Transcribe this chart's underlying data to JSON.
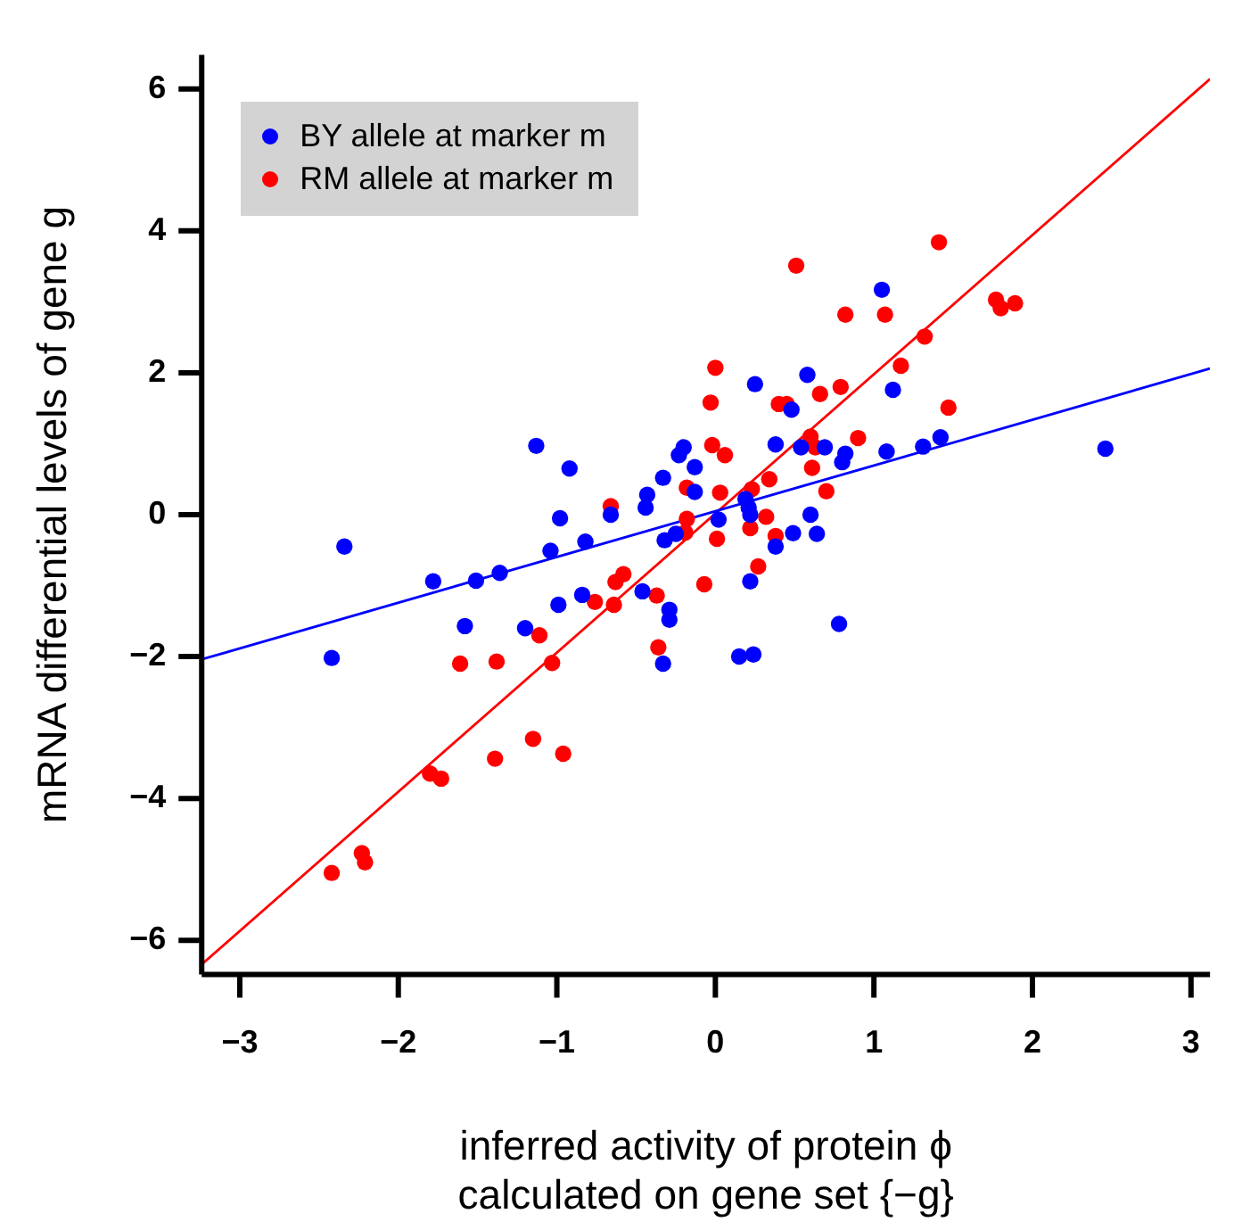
{
  "chart_data": {
    "type": "scatter",
    "xlabel": "inferred activity of protein ϕ\ncalculated on gene set {−g}",
    "ylabel": "mRNA differential levels of gene g",
    "xlim": [
      -3.24,
      3.12
    ],
    "ylim": [
      -6.48,
      6.48
    ],
    "xticks": [
      -3,
      -2,
      -1,
      0,
      1,
      2,
      3
    ],
    "yticks": [
      -6,
      -4,
      -2,
      0,
      2,
      4,
      6
    ],
    "grid": false,
    "legend": "top left",
    "marker": "circle",
    "series": [
      {
        "name": "BY allele at marker m",
        "color": "#0000ff",
        "x": [
          -2.34,
          -2.42,
          -1.78,
          -1.51,
          -1.36,
          -1.58,
          -1.2,
          -1.13,
          -0.92,
          -0.98,
          -1.04,
          -0.99,
          -0.84,
          -0.82,
          -0.66,
          -0.46,
          -0.43,
          -0.44,
          -0.33,
          -0.32,
          -0.29,
          -0.29,
          -0.33,
          -0.23,
          -0.2,
          -0.13,
          -0.25,
          -0.13,
          0.02,
          0.19,
          0.21,
          0.22,
          0.22,
          0.15,
          0.24,
          0.25,
          0.38,
          0.38,
          0.48,
          0.49,
          0.54,
          0.58,
          0.6,
          0.64,
          0.69,
          0.78,
          0.8,
          0.82,
          1.05,
          1.08,
          1.12,
          1.31,
          1.42,
          2.46
        ],
        "values": [
          -0.45,
          -2.02,
          -0.94,
          -0.93,
          -0.82,
          -1.57,
          -1.6,
          0.97,
          0.65,
          -0.05,
          -0.51,
          -1.27,
          -1.13,
          -0.38,
          0.0,
          -1.08,
          0.28,
          0.1,
          0.52,
          -0.36,
          -1.34,
          -1.48,
          -2.1,
          0.84,
          0.95,
          0.67,
          -0.27,
          0.32,
          -0.07,
          0.22,
          0.1,
          0.0,
          -0.94,
          -2.0,
          -1.97,
          1.84,
          0.99,
          -0.45,
          1.48,
          -0.26,
          0.95,
          1.97,
          0.0,
          -0.27,
          0.95,
          -1.54,
          0.74,
          0.86,
          3.17,
          0.89,
          1.76,
          0.96,
          1.09,
          0.93
        ]
      },
      {
        "name": "RM allele at marker m",
        "color": "#ff0000",
        "x": [
          -2.42,
          -2.23,
          -2.21,
          -1.8,
          -1.73,
          -1.61,
          -1.38,
          -1.39,
          -1.15,
          -1.11,
          -1.03,
          -0.96,
          -0.76,
          -0.66,
          -0.64,
          -0.63,
          -0.58,
          -0.37,
          -0.36,
          -0.18,
          -0.19,
          -0.18,
          -0.07,
          -0.03,
          -0.02,
          0.0,
          0.01,
          0.03,
          0.06,
          0.22,
          0.23,
          0.27,
          0.32,
          0.34,
          0.38,
          0.4,
          0.45,
          0.51,
          0.6,
          0.61,
          0.63,
          0.66,
          0.7,
          0.79,
          0.82,
          0.9,
          1.07,
          1.17,
          1.32,
          1.41,
          1.47,
          1.77,
          1.8,
          1.89
        ],
        "values": [
          -5.05,
          -4.77,
          -4.9,
          -3.65,
          -3.72,
          -2.1,
          -2.07,
          -3.44,
          -3.16,
          -1.7,
          -2.09,
          -3.37,
          -1.23,
          0.12,
          -1.27,
          -0.95,
          -0.84,
          -1.14,
          -1.87,
          -0.06,
          -0.25,
          0.38,
          -0.98,
          1.58,
          0.98,
          2.07,
          -0.34,
          0.31,
          0.84,
          -0.19,
          0.36,
          -0.73,
          -0.03,
          0.5,
          -0.3,
          1.56,
          1.56,
          3.51,
          1.1,
          0.66,
          0.95,
          1.7,
          0.33,
          1.8,
          2.82,
          1.08,
          2.82,
          2.1,
          2.51,
          3.84,
          1.51,
          3.03,
          2.91,
          2.98
        ]
      },
      {
        "type": "line",
        "color": "#0000ff",
        "marker": "none",
        "x": [
          -3.24,
          3.12
        ],
        "values": [
          -2.04,
          2.06
        ]
      },
      {
        "type": "line",
        "color": "#ff0000",
        "marker": "none",
        "x": [
          -3.24,
          3.12
        ],
        "values": [
          -6.34,
          6.14
        ]
      }
    ]
  }
}
